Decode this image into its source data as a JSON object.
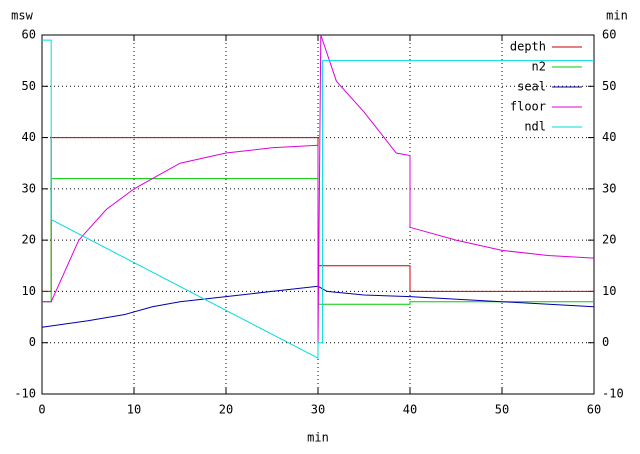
{
  "chart_data": {
    "type": "line",
    "xlabel": "min",
    "ylabel": "msw",
    "y2label": "min",
    "xlim": [
      0,
      60
    ],
    "xticks": [
      0,
      10,
      20,
      30,
      40,
      50,
      60
    ],
    "ylim": [
      -10,
      60
    ],
    "yticks": [
      -10,
      0,
      10,
      20,
      30,
      40,
      50,
      60
    ],
    "y2lim": [
      -10,
      60
    ],
    "y2ticks": [
      -10,
      0,
      10,
      20,
      30,
      40,
      50,
      60
    ],
    "grid": true,
    "legend": "top-right",
    "series": [
      {
        "name": "depth",
        "color": "#cc0000",
        "x": [
          0,
          1,
          1,
          30,
          30,
          40,
          40,
          60
        ],
        "values": [
          10,
          10,
          40,
          40,
          15,
          15,
          10,
          10
        ]
      },
      {
        "name": "n2",
        "color": "#00cc00",
        "x": [
          0,
          1,
          1,
          30,
          30,
          40,
          40,
          60
        ],
        "values": [
          8,
          8,
          32,
          32,
          7.5,
          7.5,
          8,
          8
        ]
      },
      {
        "name": "seal",
        "color": "#0000aa",
        "x": [
          0,
          5,
          9,
          12,
          15,
          20,
          25,
          30,
          31,
          35,
          40,
          50,
          60
        ],
        "values": [
          3,
          4.3,
          5.5,
          7,
          8,
          9,
          10,
          11,
          10,
          9.3,
          9,
          8,
          7
        ]
      },
      {
        "name": "floor",
        "color": "#dd00dd",
        "x": [
          0,
          1,
          2,
          4,
          7,
          10,
          15,
          20,
          25,
          30,
          30,
          30.3,
          32,
          35,
          38.5,
          40,
          40,
          45,
          50,
          55,
          60
        ],
        "values": [
          8,
          8,
          12,
          20,
          26,
          30,
          35,
          37,
          38,
          38.5,
          0,
          60,
          51,
          45,
          37,
          36.5,
          22.5,
          20,
          18,
          17,
          16.5
        ]
      },
      {
        "name": "ndl",
        "color": "#00dddd",
        "x": [
          0,
          1,
          1,
          30,
          30,
          30.5,
          30.5,
          60
        ],
        "values": [
          59,
          59,
          24,
          -3,
          0,
          0,
          55,
          55
        ]
      }
    ]
  }
}
